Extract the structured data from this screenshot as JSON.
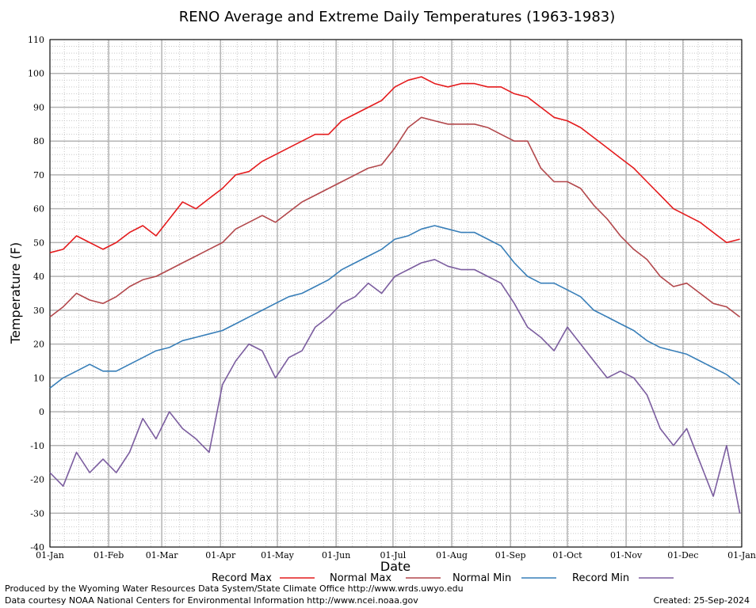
{
  "chart_data": {
    "type": "line",
    "title": "RENO Average and Extreme Daily Temperatures (1963-1983)",
    "xlabel": "Date",
    "ylabel": "Temperature (F)",
    "ylim": [
      -40,
      110
    ],
    "yticks": [
      -40,
      -30,
      -20,
      -10,
      0,
      10,
      20,
      30,
      40,
      50,
      60,
      70,
      80,
      90,
      100,
      110
    ],
    "xticks": [
      "01-Jan",
      "01-Feb",
      "01-Mar",
      "01-Apr",
      "01-May",
      "01-Jun",
      "01-Jul",
      "01-Aug",
      "01-Sep",
      "01-Oct",
      "01-Nov",
      "01-Dec",
      "01-Jan"
    ],
    "xtick_day_of_year": [
      1,
      32,
      60,
      91,
      121,
      152,
      182,
      213,
      244,
      274,
      305,
      335,
      366
    ],
    "grid": true,
    "legend_placement": "bottom",
    "series": [
      {
        "name": "Record Max",
        "color": "#e41a1c",
        "x_day_of_year": [
          1,
          8,
          15,
          22,
          29,
          36,
          43,
          50,
          57,
          64,
          71,
          78,
          85,
          92,
          99,
          106,
          113,
          120,
          127,
          134,
          141,
          148,
          155,
          162,
          169,
          176,
          183,
          190,
          197,
          204,
          211,
          218,
          225,
          232,
          239,
          246,
          253,
          260,
          267,
          274,
          281,
          288,
          295,
          302,
          309,
          316,
          323,
          330,
          337,
          344,
          351,
          358,
          365
        ],
        "values": [
          47,
          48,
          52,
          50,
          48,
          50,
          53,
          55,
          52,
          57,
          62,
          60,
          63,
          66,
          70,
          71,
          74,
          76,
          78,
          80,
          82,
          82,
          86,
          88,
          90,
          92,
          96,
          98,
          99,
          97,
          96,
          97,
          97,
          96,
          96,
          94,
          93,
          90,
          87,
          86,
          84,
          81,
          78,
          75,
          72,
          68,
          64,
          60,
          58,
          56,
          53,
          50,
          51
        ]
      },
      {
        "name": "Normal Max",
        "color": "#b2474b",
        "x_day_of_year": [
          1,
          8,
          15,
          22,
          29,
          36,
          43,
          50,
          57,
          64,
          71,
          78,
          85,
          92,
          99,
          106,
          113,
          120,
          127,
          134,
          141,
          148,
          155,
          162,
          169,
          176,
          183,
          190,
          197,
          204,
          211,
          218,
          225,
          232,
          239,
          246,
          253,
          260,
          267,
          274,
          281,
          288,
          295,
          302,
          309,
          316,
          323,
          330,
          337,
          344,
          351,
          358,
          365
        ],
        "values": [
          28,
          31,
          35,
          33,
          32,
          34,
          37,
          39,
          40,
          42,
          44,
          46,
          48,
          50,
          54,
          56,
          58,
          56,
          59,
          62,
          64,
          66,
          68,
          70,
          72,
          73,
          78,
          84,
          87,
          86,
          85,
          85,
          85,
          84,
          82,
          80,
          80,
          72,
          68,
          68,
          66,
          61,
          57,
          52,
          48,
          45,
          40,
          37,
          38,
          35,
          32,
          31,
          28
        ]
      },
      {
        "name": "Normal Min",
        "color": "#377eb8",
        "x_day_of_year": [
          1,
          8,
          15,
          22,
          29,
          36,
          43,
          50,
          57,
          64,
          71,
          78,
          85,
          92,
          99,
          106,
          113,
          120,
          127,
          134,
          141,
          148,
          155,
          162,
          169,
          176,
          183,
          190,
          197,
          204,
          211,
          218,
          225,
          232,
          239,
          246,
          253,
          260,
          267,
          274,
          281,
          288,
          295,
          302,
          309,
          316,
          323,
          330,
          337,
          344,
          351,
          358,
          365
        ],
        "values": [
          7,
          10,
          12,
          14,
          12,
          12,
          14,
          16,
          18,
          19,
          21,
          22,
          23,
          24,
          26,
          28,
          30,
          32,
          34,
          35,
          37,
          39,
          42,
          44,
          46,
          48,
          51,
          52,
          54,
          55,
          54,
          53,
          53,
          51,
          49,
          44,
          40,
          38,
          38,
          36,
          34,
          30,
          28,
          26,
          24,
          21,
          19,
          18,
          17,
          15,
          13,
          11,
          8
        ]
      },
      {
        "name": "Record Min",
        "color": "#7b5d9f",
        "x_day_of_year": [
          1,
          8,
          15,
          22,
          29,
          36,
          43,
          50,
          57,
          64,
          71,
          78,
          85,
          92,
          99,
          106,
          113,
          120,
          127,
          134,
          141,
          148,
          155,
          162,
          169,
          176,
          183,
          190,
          197,
          204,
          211,
          218,
          225,
          232,
          239,
          246,
          253,
          260,
          267,
          274,
          281,
          288,
          295,
          302,
          309,
          316,
          323,
          330,
          337,
          344,
          351,
          358,
          365
        ],
        "values": [
          -18,
          -22,
          -12,
          -18,
          -14,
          -18,
          -12,
          -2,
          -8,
          0,
          -5,
          -8,
          -12,
          8,
          15,
          20,
          18,
          10,
          16,
          18,
          25,
          28,
          32,
          34,
          38,
          35,
          40,
          42,
          44,
          45,
          43,
          42,
          42,
          40,
          38,
          32,
          25,
          22,
          18,
          25,
          20,
          15,
          10,
          12,
          10,
          5,
          -5,
          -10,
          -5,
          -15,
          -25,
          -10,
          -30
        ]
      }
    ]
  },
  "footer": {
    "producer": "Produced by the Wyoming Water Resources Data System/State Climate Office http://www.wrds.uwyo.edu",
    "source": "Data courtesy NOAA National Centers for Environmental Information http://www.ncei.noaa.gov",
    "created": "Created:  25-Sep-2024"
  }
}
